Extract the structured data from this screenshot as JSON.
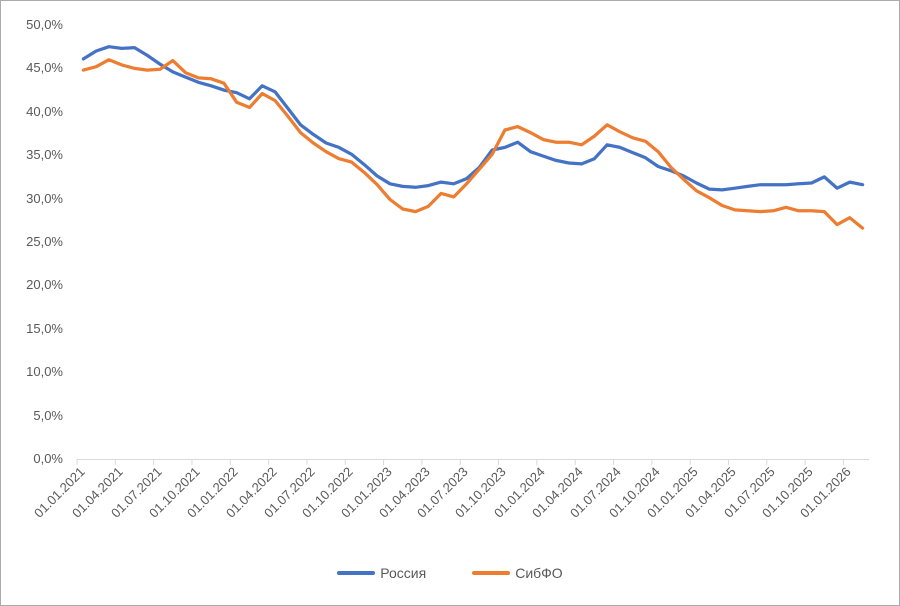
{
  "chart_data": {
    "type": "line",
    "title": "",
    "xlabel": "",
    "ylabel": "",
    "ylim": [
      0,
      50
    ],
    "y_step": 5,
    "grid": false,
    "legend_position": "bottom-center",
    "y_tick_labels": [
      "0,0%",
      "5,0%",
      "10,0%",
      "15,0%",
      "20,0%",
      "25,0%",
      "30,0%",
      "35,0%",
      "40,0%",
      "45,0%",
      "50,0%"
    ],
    "x_tick_labels": [
      "01.01.2021",
      "01.04.2021",
      "01.07.2021",
      "01.10.2021",
      "01.01.2022",
      "01.04.2022",
      "01.07.2022",
      "01.10.2022",
      "01.01.2023",
      "01.04.2023",
      "01.07.2023",
      "01.10.2023",
      "01.01.2024",
      "01.04.2024",
      "01.07.2024",
      "01.10.2024",
      "01.01.2025",
      "01.04.2025",
      "01.07.2025",
      "01.10.2025",
      "01.01.2026"
    ],
    "categories": [
      "2021-01",
      "2021-02",
      "2021-03",
      "2021-04",
      "2021-05",
      "2021-06",
      "2021-07",
      "2021-08",
      "2021-09",
      "2021-10",
      "2021-11",
      "2021-12",
      "2022-01",
      "2022-02",
      "2022-03",
      "2022-04",
      "2022-05",
      "2022-06",
      "2022-07",
      "2022-08",
      "2022-09",
      "2022-10",
      "2022-11",
      "2022-12",
      "2023-01",
      "2023-02",
      "2023-03",
      "2023-04",
      "2023-05",
      "2023-06",
      "2023-07",
      "2023-08",
      "2023-09",
      "2023-10",
      "2023-11",
      "2023-12",
      "2024-01",
      "2024-02",
      "2024-03",
      "2024-04",
      "2024-05",
      "2024-06",
      "2024-07",
      "2024-08",
      "2024-09",
      "2024-10",
      "2024-11",
      "2024-12",
      "2025-01",
      "2025-02",
      "2025-03",
      "2025-04",
      "2025-05",
      "2025-06",
      "2025-07",
      "2025-08",
      "2025-09",
      "2025-10",
      "2025-11",
      "2025-12",
      "2026-01",
      "2026-02"
    ],
    "series": [
      {
        "name": "Россия",
        "color": "#4472C4",
        "values": [
          46.1,
          47.0,
          47.5,
          47.3,
          47.4,
          46.5,
          45.5,
          44.6,
          44.0,
          43.4,
          43.0,
          42.5,
          42.2,
          41.5,
          43.0,
          42.3,
          40.4,
          38.5,
          37.4,
          36.4,
          35.9,
          35.1,
          33.9,
          32.6,
          31.7,
          31.4,
          31.3,
          31.5,
          31.9,
          31.7,
          32.3,
          33.6,
          35.6,
          35.9,
          36.5,
          35.4,
          34.9,
          34.4,
          34.1,
          34.0,
          34.6,
          36.2,
          35.9,
          35.3,
          34.7,
          33.7,
          33.2,
          32.6,
          31.8,
          31.1,
          31.0,
          31.2,
          31.4,
          31.6,
          31.6,
          31.6,
          31.7,
          31.8,
          32.5,
          31.2,
          31.9,
          31.6
        ]
      },
      {
        "name": "СибФО",
        "color": "#ED7D31",
        "values": [
          44.8,
          45.2,
          46.0,
          45.4,
          45.0,
          44.8,
          44.9,
          45.9,
          44.5,
          43.9,
          43.8,
          43.3,
          41.1,
          40.5,
          42.1,
          41.3,
          39.5,
          37.6,
          36.4,
          35.4,
          34.6,
          34.2,
          33.0,
          31.6,
          29.9,
          28.8,
          28.5,
          29.1,
          30.6,
          30.2,
          31.7,
          33.4,
          35.1,
          37.9,
          38.3,
          37.6,
          36.8,
          36.5,
          36.5,
          36.2,
          37.2,
          38.5,
          37.7,
          37.0,
          36.6,
          35.4,
          33.6,
          32.2,
          30.9,
          30.1,
          29.2,
          28.7,
          28.6,
          28.5,
          28.6,
          29.0,
          28.6,
          28.6,
          28.5,
          27.0,
          27.8,
          26.6
        ]
      }
    ],
    "axis_color": "#D9D9D9",
    "label_color": "#595959",
    "border_color": "#ABABAB",
    "line_width": 3.25
  },
  "legend": {
    "series_1_label": "Россия",
    "series_2_label": "СибФО"
  }
}
